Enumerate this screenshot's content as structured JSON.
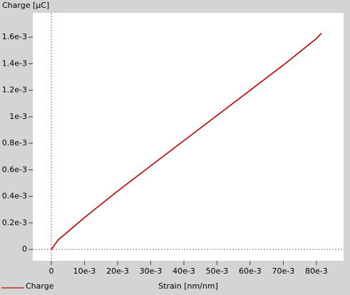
{
  "chart_data": {
    "type": "line",
    "y_label": "Charge [µC]",
    "x_label": "Strain [nm/nm]",
    "x": [
      0,
      0.002,
      0.01,
      0.02,
      0.03,
      0.04,
      0.05,
      0.06,
      0.07,
      0.08,
      0.0815
    ],
    "series": [
      {
        "name": "Charge",
        "color": "#c00000",
        "values": [
          0,
          7e-05,
          0.00024,
          0.00044,
          0.00063,
          0.00082,
          0.00101,
          0.0012,
          0.00139,
          0.00159,
          0.00163
        ]
      }
    ],
    "xlim": [
      -0.0056,
      0.0882
    ],
    "ylim": [
      -8.6e-05,
      0.001784
    ],
    "xticks": [
      0,
      {
        "value": 0.01,
        "label": "10e-3"
      },
      {
        "value": 0.02,
        "label": "20e-3"
      },
      {
        "value": 0.03,
        "label": "30e-3"
      },
      {
        "value": 0.04,
        "label": "40e-3"
      },
      {
        "value": 0.05,
        "label": "50e-3"
      },
      {
        "value": 0.06,
        "label": "60e-3"
      },
      {
        "value": 0.07,
        "label": "70e-3"
      },
      {
        "value": 0.08,
        "label": "80e-3"
      }
    ],
    "yticks": [
      0,
      {
        "value": 0.0002,
        "label": "0.2e-3"
      },
      {
        "value": 0.0004,
        "label": "0.4e-3"
      },
      {
        "value": 0.0006,
        "label": "0.6e-3"
      },
      {
        "value": 0.0008,
        "label": "0.8e-3"
      },
      {
        "value": 0.001,
        "label": "1e-3"
      },
      {
        "value": 0.0012,
        "label": "1.2e-3"
      },
      {
        "value": 0.0014,
        "label": "1.4e-3"
      },
      {
        "value": 0.0016,
        "label": "1.6e-3"
      }
    ],
    "grid": false,
    "legend": "bottom-left"
  }
}
